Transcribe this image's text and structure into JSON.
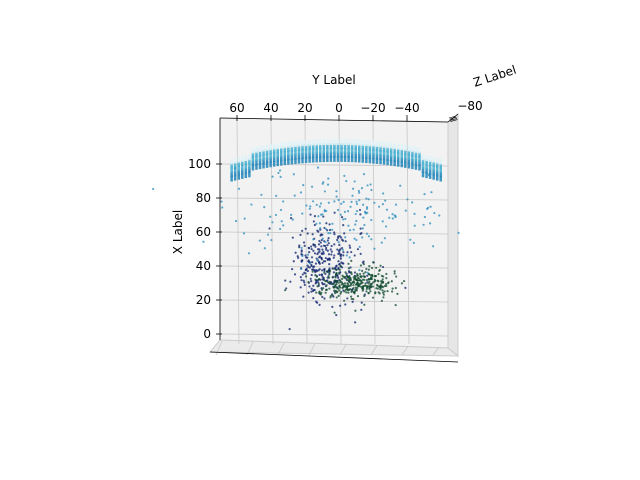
{
  "chart_data": {
    "type": "scatter",
    "projection": "3d",
    "xlabel": "X Label",
    "ylabel": "Y Label",
    "zlabel": "Z Label",
    "x_ticks": [
      0,
      20,
      40,
      60,
      80,
      100
    ],
    "y_ticks": [
      60,
      40,
      20,
      0,
      -20,
      -40
    ],
    "y_tick_labels": [
      "60",
      "40",
      "20",
      "0",
      "−20",
      "−40"
    ],
    "z_ticks_label_text": "−80",
    "xlim": [
      -10,
      120
    ],
    "ylim": [
      70,
      -60
    ],
    "grid": true,
    "series": [
      {
        "colormap": "GnBu",
        "description_values": "Point cloud: dense dark-blue and dark-green core near X 20-50, Y 0 to -20; sparser light-blue points near X 60-95; densely sampled light-blue arc band near X 95-105 spanning Y 60 to -60."
      }
    ],
    "band": {
      "x_range": [
        95,
        105
      ],
      "y_range": [
        63,
        -60
      ]
    },
    "clusters": [
      {
        "name": "",
        "x_center": 42,
        "y_center": 8,
        "x_spread": 12,
        "y_spread": 10,
        "count": 320,
        "color": "#0b1f6b"
      },
      {
        "name": "",
        "x_center": 30,
        "y_center": -10,
        "x_spread": 5,
        "y_spread": 12,
        "count": 320,
        "color": "#0d4a2e"
      },
      {
        "name": "",
        "x_center": 72,
        "y_center": 0,
        "x_spread": 13,
        "y_spread": 30,
        "count": 180,
        "color": "#2b8cbe"
      }
    ],
    "colors": {
      "dark_blue": "#08306b",
      "dark_green": "#00441b",
      "light_blue": "#4eb3d3",
      "band_light": "#e0f3f8",
      "band_dark": "#2b8cbe"
    }
  }
}
